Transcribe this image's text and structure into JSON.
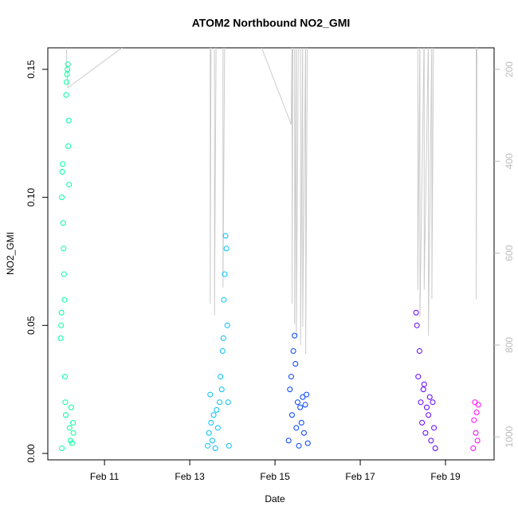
{
  "chart_data": {
    "type": "scatter",
    "title": "ATOM2 Northbound NO2_GMI",
    "x_label": "Date",
    "y_label": "NO2_GMI",
    "xlim": [
      9.67,
      20.14
    ],
    "ylim": [
      -0.0025,
      0.1584
    ],
    "y2lim": [
      1050,
      153
    ],
    "xticks": [
      {
        "value": 11,
        "label": "Feb 11"
      },
      {
        "value": 13,
        "label": "Feb 13"
      },
      {
        "value": 15,
        "label": "Feb 15"
      },
      {
        "value": 17,
        "label": "Feb 17"
      },
      {
        "value": 19,
        "label": "Feb 19"
      }
    ],
    "yticks": [
      {
        "value": 0,
        "label": "0.00"
      },
      {
        "value": 0.05,
        "label": "0.05"
      },
      {
        "value": 0.1,
        "label": "0.10"
      },
      {
        "value": 0.15,
        "label": "0.15"
      }
    ],
    "y2ticks": [
      200,
      400,
      600,
      800,
      1000
    ],
    "series": [
      {
        "color": "#00FFA0",
        "x": [
          9.97,
          9.98,
          9.99,
          10.0,
          10.0,
          10.01,
          10.02,
          10.03,
          10.04,
          10.05,
          10.06,
          10.07,
          10.08,
          10.09,
          10.1,
          10.11,
          10.12,
          10.13,
          10.14,
          10.15,
          10.16,
          10.17,
          10.18,
          10.2,
          10.22,
          10.24,
          10.26,
          10.27
        ],
        "values": [
          0.045,
          0.05,
          0.055,
          0.002,
          0.1,
          0.11,
          0.113,
          0.09,
          0.08,
          0.07,
          0.06,
          0.03,
          0.02,
          0.015,
          0.14,
          0.145,
          0.148,
          0.15,
          0.152,
          0.12,
          0.13,
          0.105,
          0.01,
          0.005,
          0.018,
          0.004,
          0.012,
          0.008
        ]
      },
      {
        "color": "#00BFFF",
        "x": [
          13.42,
          13.45,
          13.48,
          13.5,
          13.53,
          13.56,
          13.6,
          13.63,
          13.66,
          13.7,
          13.72,
          13.75,
          13.77,
          13.79,
          13.8,
          13.82,
          13.84,
          13.86,
          13.88,
          13.9,
          13.92
        ],
        "values": [
          0.003,
          0.008,
          0.023,
          0.012,
          0.005,
          0.015,
          0.002,
          0.017,
          0.01,
          0.02,
          0.03,
          0.025,
          0.04,
          0.045,
          0.06,
          0.07,
          0.085,
          0.08,
          0.05,
          0.02,
          0.003
        ]
      },
      {
        "color": "#0040FF",
        "x": [
          15.32,
          15.35,
          15.38,
          15.4,
          15.43,
          15.46,
          15.48,
          15.5,
          15.53,
          15.56,
          15.59,
          15.62,
          15.65,
          15.68,
          15.71,
          15.74,
          15.77
        ],
        "values": [
          0.005,
          0.025,
          0.03,
          0.015,
          0.04,
          0.046,
          0.035,
          0.01,
          0.02,
          0.003,
          0.018,
          0.012,
          0.022,
          0.008,
          0.019,
          0.023,
          0.004
        ]
      },
      {
        "color": "#6000FF",
        "x": [
          18.31,
          18.33,
          18.36,
          18.39,
          18.42,
          18.45,
          18.48,
          18.5,
          18.53,
          18.56,
          18.6,
          18.63,
          18.66,
          18.7,
          18.73,
          18.76
        ],
        "values": [
          0.055,
          0.05,
          0.03,
          0.04,
          0.02,
          0.012,
          0.025,
          0.027,
          0.008,
          0.018,
          0.015,
          0.022,
          0.005,
          0.02,
          0.01,
          0.002
        ]
      },
      {
        "color": "#FF00FF",
        "x": [
          19.65,
          19.67,
          19.69,
          19.71,
          19.73,
          19.75,
          19.77
        ],
        "values": [
          0.002,
          0.013,
          0.02,
          0.008,
          0.016,
          0.005,
          0.019
        ]
      },
      {
        "type": "line",
        "axis": "y2",
        "color": "#cccccc",
        "x": [
          10.1,
          10.12,
          10.14,
          11.6,
          null,
          13.48,
          13.48,
          13.5,
          null,
          13.58,
          13.58,
          13.62,
          null,
          13.78,
          13.78,
          13.82,
          null,
          14.55,
          15.38,
          15.4,
          15.4,
          15.42,
          null,
          15.46,
          15.46,
          15.5,
          15.5,
          15.55,
          null,
          15.6,
          15.6,
          15.65,
          15.65,
          15.72,
          15.72,
          15.76,
          null,
          18.35,
          18.35,
          18.4,
          18.4,
          18.5,
          18.5,
          18.6,
          18.6,
          18.68,
          18.68,
          18.72,
          null,
          19.72,
          19.72,
          19.74
        ],
        "values": [
          120,
          200,
          240,
          140,
          null,
          120,
          710,
          120,
          null,
          120,
          735,
          120,
          null,
          120,
          675,
          120,
          null,
          120,
          320,
          120,
          710,
          120,
          null,
          120,
          755,
          120,
          780,
          120,
          null,
          120,
          800,
          120,
          760,
          120,
          820,
          120,
          null,
          120,
          680,
          120,
          740,
          120,
          680,
          120,
          780,
          120,
          700,
          120,
          null,
          120,
          700,
          120
        ]
      }
    ]
  }
}
